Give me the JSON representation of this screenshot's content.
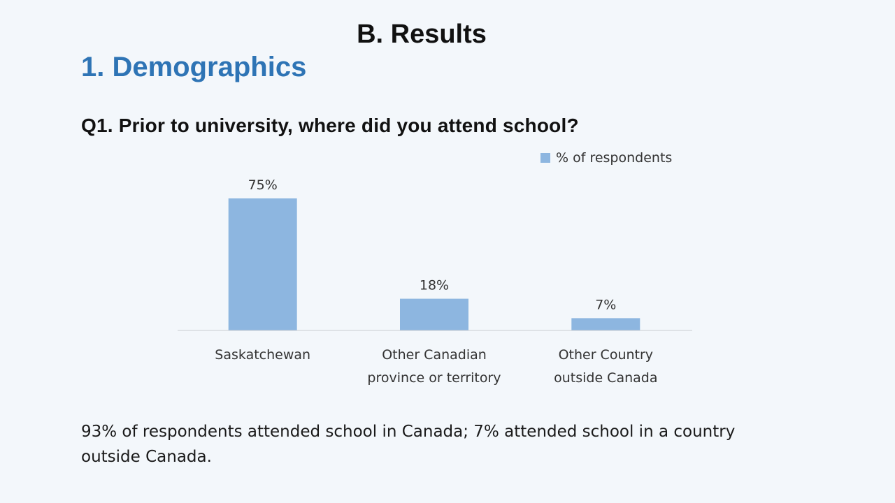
{
  "slide": {
    "title": "B. Results",
    "section": "1. Demographics",
    "question": "Q1. Prior to university, where did you attend school?",
    "summary": "93% of respondents attended school in Canada; 7% attended school in a country outside Canada."
  },
  "chart_data": {
    "type": "bar",
    "categories": [
      [
        "Saskatchewan"
      ],
      [
        "Other Canadian",
        "province or territory"
      ],
      [
        "Other Country",
        "outside Canada"
      ]
    ],
    "series": [
      {
        "name": "% of respondents",
        "values": [
          75,
          18,
          7
        ],
        "labels": [
          "75%",
          "18%",
          "7%"
        ],
        "color": "#8db6e0"
      }
    ],
    "legend_position": "top-right",
    "ylim": [
      0,
      75
    ],
    "grid": false,
    "axis_color": "#c9ccd0"
  }
}
